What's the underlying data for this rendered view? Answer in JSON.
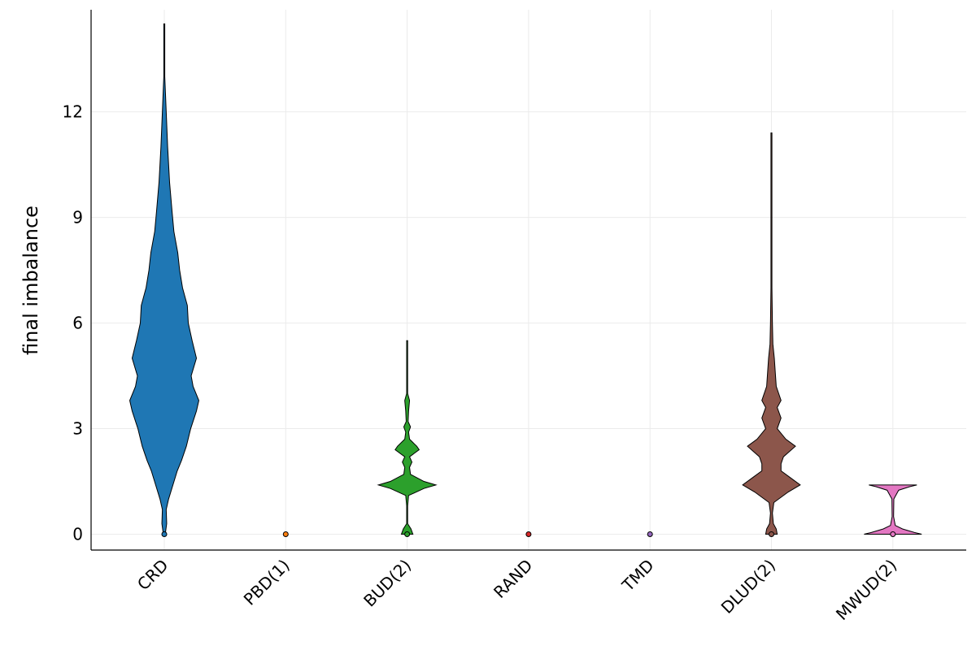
{
  "chart_data": {
    "type": "violin",
    "ylabel": "final imbalance",
    "xlabel": "",
    "ylim": [
      -0.45,
      14.9
    ],
    "y_ticks": [
      0,
      3,
      6,
      9,
      12
    ],
    "grid": true,
    "legend": "none",
    "categories": [
      "CRD",
      "PBD(1)",
      "BUD(2)",
      "RAND",
      "TMD",
      "DLUD(2)",
      "MWUD(2)"
    ],
    "series": [
      {
        "color": "#1f77b4",
        "median": 0,
        "profile": [
          [
            0,
            0.02
          ],
          [
            0.3,
            0.05
          ],
          [
            0.7,
            0.04
          ],
          [
            1.0,
            0.09
          ],
          [
            1.4,
            0.18
          ],
          [
            1.8,
            0.27
          ],
          [
            2.1,
            0.36
          ],
          [
            2.5,
            0.46
          ],
          [
            3.0,
            0.55
          ],
          [
            3.5,
            0.67
          ],
          [
            3.8,
            0.72
          ],
          [
            4.2,
            0.6
          ],
          [
            4.5,
            0.56
          ],
          [
            5.0,
            0.67
          ],
          [
            5.5,
            0.58
          ],
          [
            6.0,
            0.5
          ],
          [
            6.5,
            0.48
          ],
          [
            7.0,
            0.38
          ],
          [
            7.5,
            0.32
          ],
          [
            8.0,
            0.28
          ],
          [
            8.6,
            0.2
          ],
          [
            9.2,
            0.16
          ],
          [
            10.0,
            0.11
          ],
          [
            11.0,
            0.07
          ],
          [
            12.0,
            0.04
          ],
          [
            13.0,
            0.01
          ],
          [
            14.5,
            0
          ]
        ]
      },
      {
        "color": "#ff7f0e",
        "median": 0,
        "profile": []
      },
      {
        "color": "#2ca02c",
        "median": 0,
        "profile": [
          [
            0,
            0.12
          ],
          [
            0.15,
            0.08
          ],
          [
            0.3,
            0.01
          ],
          [
            0.8,
            0.01
          ],
          [
            1.1,
            0.03
          ],
          [
            1.3,
            0.35
          ],
          [
            1.4,
            0.6
          ],
          [
            1.5,
            0.35
          ],
          [
            1.7,
            0.07
          ],
          [
            1.9,
            0.05
          ],
          [
            2.05,
            0.1
          ],
          [
            2.2,
            0.05
          ],
          [
            2.4,
            0.25
          ],
          [
            2.5,
            0.2
          ],
          [
            2.7,
            0.05
          ],
          [
            2.9,
            0.03
          ],
          [
            3.05,
            0.07
          ],
          [
            3.2,
            0.02
          ],
          [
            3.5,
            0.03
          ],
          [
            3.8,
            0.05
          ],
          [
            4.0,
            0.01
          ],
          [
            5.5,
            0
          ]
        ]
      },
      {
        "color": "#d62728",
        "median": 0,
        "profile": []
      },
      {
        "color": "#9467bd",
        "median": 0,
        "profile": []
      },
      {
        "color": "#8c564b",
        "median": 0,
        "profile": [
          [
            0,
            0.12
          ],
          [
            0.15,
            0.1
          ],
          [
            0.3,
            0.04
          ],
          [
            0.6,
            0.02
          ],
          [
            0.9,
            0.05
          ],
          [
            1.2,
            0.35
          ],
          [
            1.4,
            0.6
          ],
          [
            1.6,
            0.4
          ],
          [
            1.8,
            0.2
          ],
          [
            2.0,
            0.2
          ],
          [
            2.2,
            0.25
          ],
          [
            2.5,
            0.5
          ],
          [
            2.7,
            0.3
          ],
          [
            3.0,
            0.12
          ],
          [
            3.3,
            0.2
          ],
          [
            3.6,
            0.12
          ],
          [
            3.8,
            0.2
          ],
          [
            4.2,
            0.1
          ],
          [
            4.6,
            0.08
          ],
          [
            5.0,
            0.06
          ],
          [
            5.4,
            0.03
          ],
          [
            6.0,
            0.02
          ],
          [
            7.0,
            0.01
          ],
          [
            9.0,
            0.005
          ],
          [
            11.4,
            0
          ]
        ]
      },
      {
        "color": "#e377c2",
        "median": 0,
        "profile": [
          [
            0,
            0.6
          ],
          [
            0.05,
            0.45
          ],
          [
            0.15,
            0.2
          ],
          [
            0.25,
            0.05
          ],
          [
            0.5,
            0.015
          ],
          [
            1.0,
            0.02
          ],
          [
            1.25,
            0.12
          ],
          [
            1.35,
            0.35
          ],
          [
            1.4,
            0.5
          ]
        ]
      }
    ]
  }
}
